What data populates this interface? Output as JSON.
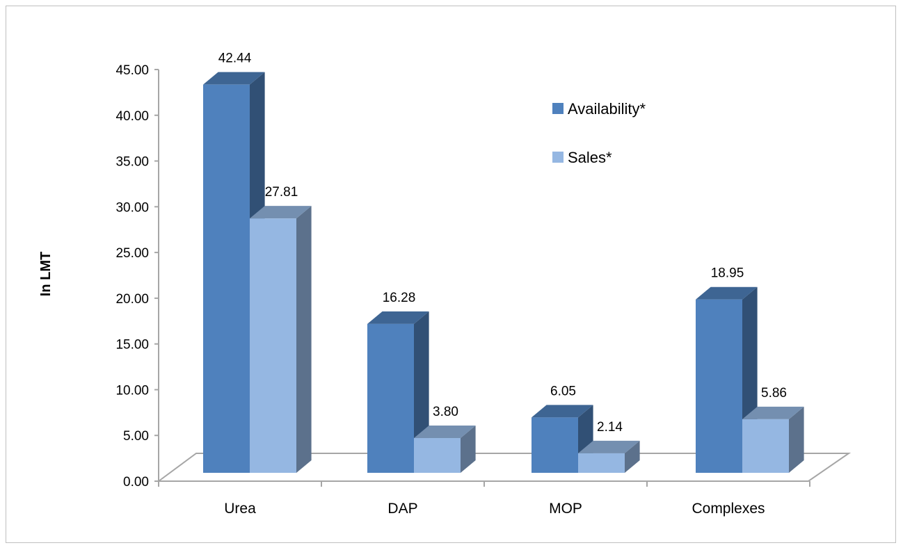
{
  "chart_data": {
    "type": "bar",
    "style": "3d-clustered-column",
    "categories": [
      "Urea",
      "DAP",
      "MOP",
      "Complexes"
    ],
    "series": [
      {
        "name": "Availability*",
        "values": [
          42.44,
          16.28,
          6.05,
          18.95
        ],
        "color": "#4f81bd"
      },
      {
        "name": "Sales*",
        "values": [
          27.81,
          3.8,
          2.14,
          5.86
        ],
        "color": "#95b7e2"
      }
    ],
    "data_labels": {
      "Availability*": [
        "42.44",
        "16.28",
        "6.05",
        "18.95"
      ],
      "Sales*": [
        "27.81",
        "3.80",
        "2.14",
        "5.86"
      ]
    },
    "ylabel": "In LMT",
    "xlabel": "",
    "ylim": [
      0,
      45
    ],
    "yticks": [
      "0.00",
      "5.00",
      "10.00",
      "15.00",
      "20.00",
      "25.00",
      "30.00",
      "35.00",
      "40.00",
      "45.00"
    ],
    "legend_position": "top-right",
    "grid": false
  }
}
